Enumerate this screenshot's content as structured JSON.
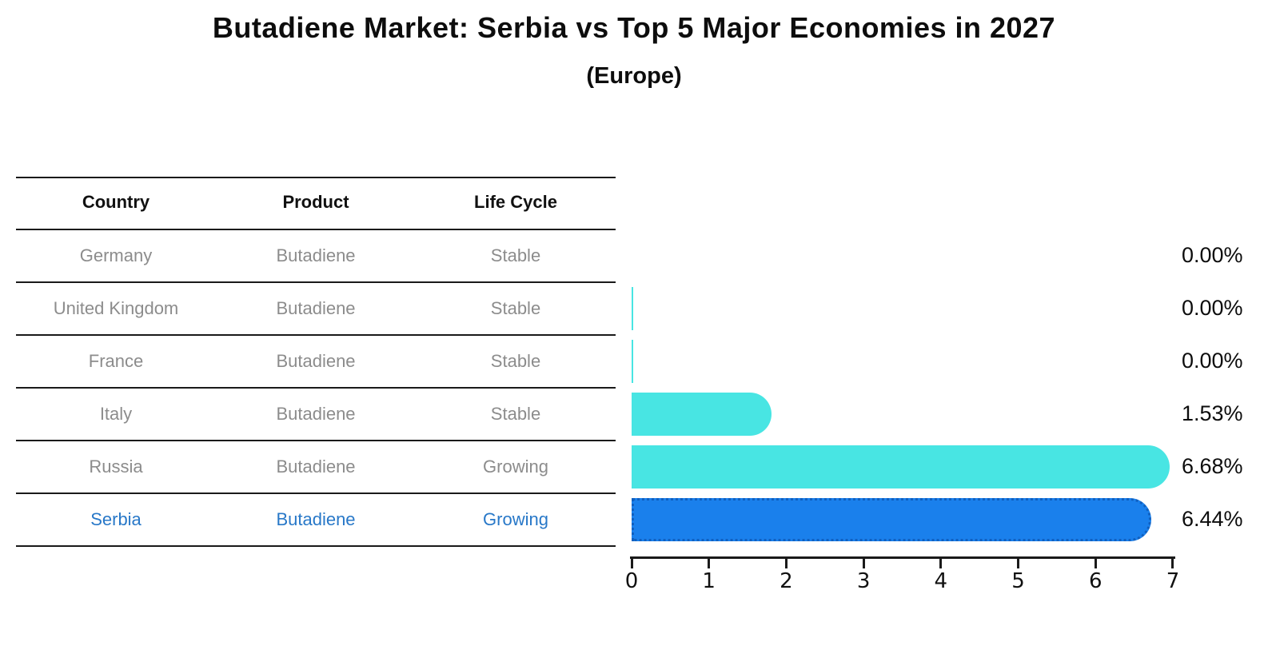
{
  "title": "Butadiene Market: Serbia vs Top 5 Major Economies in 2027",
  "subtitle": "(Europe)",
  "table": {
    "headers": [
      "Country",
      "Product",
      "Life Cycle"
    ],
    "rows": [
      {
        "country": "Germany",
        "product": "Butadiene",
        "life_cycle": "Stable",
        "highlighted": false
      },
      {
        "country": "United Kingdom",
        "product": "Butadiene",
        "life_cycle": "Stable",
        "highlighted": false
      },
      {
        "country": "France",
        "product": "Butadiene",
        "life_cycle": "Stable",
        "highlighted": false
      },
      {
        "country": "Italy",
        "product": "Butadiene",
        "life_cycle": "Stable",
        "highlighted": false
      },
      {
        "country": "Russia",
        "product": "Butadiene",
        "life_cycle": "Growing",
        "highlighted": false
      },
      {
        "country": "Serbia",
        "product": "Butadiene",
        "life_cycle": "Growing",
        "highlighted": true
      }
    ]
  },
  "chart_data": {
    "type": "bar",
    "orientation": "horizontal",
    "title": "Butadiene Market: Serbia vs Top 5 Major Economies in 2027",
    "subtitle": "(Europe)",
    "categories": [
      "Germany",
      "United Kingdom",
      "France",
      "Italy",
      "Russia",
      "Serbia"
    ],
    "values": [
      0.0,
      0.0,
      0.0,
      1.53,
      6.68,
      6.44
    ],
    "value_labels": [
      "0.00%",
      "0.00%",
      "0.00%",
      "1.53%",
      "6.68%",
      "6.44%"
    ],
    "near_zero_slivers": [
      "United Kingdom",
      "France"
    ],
    "highlight_category": "Serbia",
    "xlabel": "",
    "ylabel": "",
    "xlim": [
      0,
      7
    ],
    "xticks": [
      0,
      1,
      2,
      3,
      4,
      5,
      6,
      7
    ],
    "grid": false,
    "legend": false
  },
  "colors": {
    "bar_default": "#48e5e3",
    "bar_highlight": "#1a80ec",
    "bar_highlight_border": "#1060c0",
    "text_muted": "#8c8c8c",
    "text_highlight": "#2878c8",
    "text_primary": "#111111",
    "background": "#ffffff"
  }
}
